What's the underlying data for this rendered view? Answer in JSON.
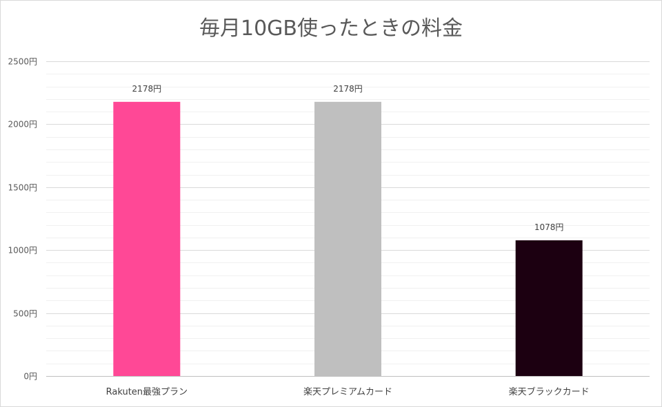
{
  "chart_data": {
    "type": "bar",
    "title": "毎月10GB使ったときの料金",
    "xlabel": "",
    "ylabel": "",
    "categories": [
      "Rakuten最強プラン",
      "楽天プレミアムカード",
      "楽天ブラックカード"
    ],
    "values": [
      2178,
      2178,
      1078
    ],
    "data_labels": [
      "2178円",
      "2178円",
      "1078円"
    ],
    "bar_colors": [
      "#ff4896",
      "#bfbfbf",
      "#1c0011"
    ],
    "ylim": [
      0,
      2500
    ],
    "y_ticks": [
      0,
      500,
      1000,
      1500,
      2000,
      2500
    ],
    "y_tick_labels": [
      "0円",
      "500円",
      "1000円",
      "1500円",
      "2000円",
      "2500円"
    ],
    "minor_step": 100,
    "grid": true,
    "legend": "none",
    "colors": {
      "major_grid": "#d9d9d9",
      "minor_grid": "#f0f0f0",
      "axis": "#bfbfbf",
      "text": "#595959"
    }
  }
}
